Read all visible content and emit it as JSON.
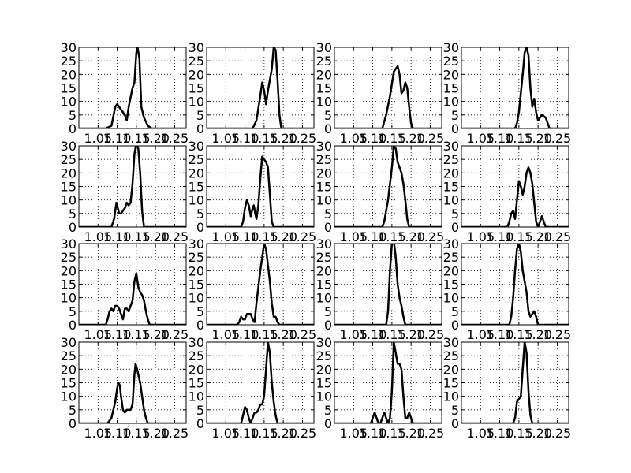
{
  "chart_data": {
    "type": "line",
    "rows": 4,
    "cols": 4,
    "xlim": [
      1.0,
      1.28
    ],
    "ylim": [
      0,
      30
    ],
    "xticks": [
      1.05,
      1.1,
      1.15,
      1.2,
      1.25
    ],
    "xtick_labels": [
      "1.05",
      "1.10",
      "1.15",
      "1.20",
      "1.25"
    ],
    "yticks": [
      0,
      5,
      10,
      15,
      20,
      25,
      30
    ],
    "ytick_labels": [
      "0",
      "5",
      "10",
      "15",
      "20",
      "25",
      "30"
    ],
    "grid": true,
    "panels": [
      {
        "points": [
          [
            1.0,
            0
          ],
          [
            1.07,
            0
          ],
          [
            1.085,
            1
          ],
          [
            1.095,
            8
          ],
          [
            1.1,
            9
          ],
          [
            1.11,
            7
          ],
          [
            1.12,
            5
          ],
          [
            1.125,
            3
          ],
          [
            1.13,
            8
          ],
          [
            1.14,
            15
          ],
          [
            1.145,
            17
          ],
          [
            1.15,
            28
          ],
          [
            1.153,
            30
          ],
          [
            1.158,
            26
          ],
          [
            1.163,
            8
          ],
          [
            1.17,
            4
          ],
          [
            1.18,
            1
          ],
          [
            1.19,
            0
          ],
          [
            1.28,
            0
          ]
        ]
      },
      {
        "points": [
          [
            1.0,
            0
          ],
          [
            1.12,
            0
          ],
          [
            1.13,
            3
          ],
          [
            1.14,
            12
          ],
          [
            1.145,
            17
          ],
          [
            1.15,
            14
          ],
          [
            1.155,
            9
          ],
          [
            1.16,
            14
          ],
          [
            1.17,
            22
          ],
          [
            1.175,
            30
          ],
          [
            1.18,
            29
          ],
          [
            1.185,
            18
          ],
          [
            1.19,
            5
          ],
          [
            1.195,
            0
          ],
          [
            1.28,
            0
          ]
        ]
      },
      {
        "points": [
          [
            1.0,
            0
          ],
          [
            1.125,
            0
          ],
          [
            1.135,
            5
          ],
          [
            1.145,
            12
          ],
          [
            1.155,
            21
          ],
          [
            1.165,
            23
          ],
          [
            1.17,
            20
          ],
          [
            1.175,
            13
          ],
          [
            1.18,
            14
          ],
          [
            1.185,
            17
          ],
          [
            1.19,
            15
          ],
          [
            1.195,
            8
          ],
          [
            1.2,
            2
          ],
          [
            1.205,
            0
          ],
          [
            1.28,
            0
          ]
        ]
      },
      {
        "points": [
          [
            1.0,
            0
          ],
          [
            1.14,
            0
          ],
          [
            1.145,
            2
          ],
          [
            1.15,
            6
          ],
          [
            1.16,
            20
          ],
          [
            1.165,
            28
          ],
          [
            1.17,
            30
          ],
          [
            1.175,
            27
          ],
          [
            1.18,
            15
          ],
          [
            1.185,
            8
          ],
          [
            1.19,
            11
          ],
          [
            1.195,
            6
          ],
          [
            1.2,
            3
          ],
          [
            1.205,
            4
          ],
          [
            1.21,
            5
          ],
          [
            1.22,
            4
          ],
          [
            1.225,
            2
          ],
          [
            1.23,
            0
          ],
          [
            1.28,
            0
          ]
        ]
      },
      {
        "points": [
          [
            1.0,
            0
          ],
          [
            1.085,
            0
          ],
          [
            1.092,
            3
          ],
          [
            1.098,
            9
          ],
          [
            1.1,
            8
          ],
          [
            1.105,
            5
          ],
          [
            1.11,
            5
          ],
          [
            1.12,
            7
          ],
          [
            1.125,
            9
          ],
          [
            1.13,
            8
          ],
          [
            1.135,
            9
          ],
          [
            1.14,
            16
          ],
          [
            1.145,
            27
          ],
          [
            1.15,
            31
          ],
          [
            1.155,
            29
          ],
          [
            1.16,
            20
          ],
          [
            1.165,
            6
          ],
          [
            1.17,
            0
          ],
          [
            1.28,
            0
          ]
        ]
      },
      {
        "points": [
          [
            1.0,
            0
          ],
          [
            1.09,
            0
          ],
          [
            1.095,
            2
          ],
          [
            1.1,
            7
          ],
          [
            1.105,
            10
          ],
          [
            1.11,
            8
          ],
          [
            1.115,
            4
          ],
          [
            1.12,
            7
          ],
          [
            1.123,
            8
          ],
          [
            1.127,
            5
          ],
          [
            1.13,
            3
          ],
          [
            1.135,
            8
          ],
          [
            1.14,
            18
          ],
          [
            1.145,
            26
          ],
          [
            1.15,
            25
          ],
          [
            1.155,
            24
          ],
          [
            1.16,
            22
          ],
          [
            1.165,
            12
          ],
          [
            1.17,
            2
          ],
          [
            1.175,
            0
          ],
          [
            1.28,
            0
          ]
        ]
      },
      {
        "points": [
          [
            1.0,
            0
          ],
          [
            1.125,
            0
          ],
          [
            1.13,
            2
          ],
          [
            1.14,
            10
          ],
          [
            1.15,
            22
          ],
          [
            1.155,
            30
          ],
          [
            1.16,
            29
          ],
          [
            1.165,
            24
          ],
          [
            1.175,
            20
          ],
          [
            1.18,
            16
          ],
          [
            1.185,
            10
          ],
          [
            1.19,
            3
          ],
          [
            1.195,
            0
          ],
          [
            1.28,
            0
          ]
        ]
      },
      {
        "points": [
          [
            1.0,
            0
          ],
          [
            1.12,
            0
          ],
          [
            1.125,
            2
          ],
          [
            1.13,
            5
          ],
          [
            1.135,
            6
          ],
          [
            1.14,
            3
          ],
          [
            1.145,
            10
          ],
          [
            1.15,
            17
          ],
          [
            1.155,
            15
          ],
          [
            1.16,
            12
          ],
          [
            1.165,
            15
          ],
          [
            1.17,
            20
          ],
          [
            1.175,
            22
          ],
          [
            1.18,
            20
          ],
          [
            1.185,
            16
          ],
          [
            1.19,
            9
          ],
          [
            1.195,
            2
          ],
          [
            1.2,
            0
          ],
          [
            1.205,
            2
          ],
          [
            1.21,
            4
          ],
          [
            1.215,
            2
          ],
          [
            1.22,
            0
          ],
          [
            1.28,
            0
          ]
        ]
      },
      {
        "points": [
          [
            1.0,
            0
          ],
          [
            1.07,
            0
          ],
          [
            1.075,
            2
          ],
          [
            1.08,
            5
          ],
          [
            1.085,
            6
          ],
          [
            1.09,
            5
          ],
          [
            1.095,
            7
          ],
          [
            1.1,
            7
          ],
          [
            1.105,
            6
          ],
          [
            1.11,
            4
          ],
          [
            1.115,
            2
          ],
          [
            1.12,
            6
          ],
          [
            1.125,
            6
          ],
          [
            1.13,
            5
          ],
          [
            1.135,
            7
          ],
          [
            1.14,
            9
          ],
          [
            1.145,
            16
          ],
          [
            1.15,
            19
          ],
          [
            1.155,
            14
          ],
          [
            1.16,
            12
          ],
          [
            1.165,
            11
          ],
          [
            1.17,
            9
          ],
          [
            1.175,
            5
          ],
          [
            1.18,
            2
          ],
          [
            1.185,
            0
          ],
          [
            1.28,
            0
          ]
        ]
      },
      {
        "points": [
          [
            1.0,
            0
          ],
          [
            1.08,
            0
          ],
          [
            1.085,
            1
          ],
          [
            1.09,
            3
          ],
          [
            1.095,
            2
          ],
          [
            1.1,
            2
          ],
          [
            1.105,
            4
          ],
          [
            1.11,
            4
          ],
          [
            1.115,
            4
          ],
          [
            1.12,
            2
          ],
          [
            1.125,
            1
          ],
          [
            1.13,
            8
          ],
          [
            1.14,
            20
          ],
          [
            1.145,
            25
          ],
          [
            1.15,
            30
          ],
          [
            1.155,
            28
          ],
          [
            1.16,
            22
          ],
          [
            1.165,
            16
          ],
          [
            1.17,
            8
          ],
          [
            1.175,
            3
          ],
          [
            1.18,
            3
          ],
          [
            1.185,
            1
          ],
          [
            1.19,
            0
          ],
          [
            1.28,
            0
          ]
        ]
      },
      {
        "points": [
          [
            1.0,
            0
          ],
          [
            1.135,
            0
          ],
          [
            1.14,
            5
          ],
          [
            1.145,
            20
          ],
          [
            1.15,
            30
          ],
          [
            1.155,
            31
          ],
          [
            1.16,
            25
          ],
          [
            1.165,
            15
          ],
          [
            1.17,
            10
          ],
          [
            1.175,
            7
          ],
          [
            1.18,
            3
          ],
          [
            1.185,
            0
          ],
          [
            1.28,
            0
          ]
        ]
      },
      {
        "points": [
          [
            1.0,
            0
          ],
          [
            1.125,
            0
          ],
          [
            1.13,
            3
          ],
          [
            1.135,
            10
          ],
          [
            1.14,
            20
          ],
          [
            1.145,
            28
          ],
          [
            1.15,
            30
          ],
          [
            1.155,
            27
          ],
          [
            1.16,
            20
          ],
          [
            1.17,
            12
          ],
          [
            1.175,
            5
          ],
          [
            1.18,
            3
          ],
          [
            1.185,
            4
          ],
          [
            1.19,
            5
          ],
          [
            1.195,
            3
          ],
          [
            1.2,
            0
          ],
          [
            1.28,
            0
          ]
        ]
      },
      {
        "points": [
          [
            1.0,
            0
          ],
          [
            1.075,
            0
          ],
          [
            1.085,
            2
          ],
          [
            1.09,
            5
          ],
          [
            1.095,
            8
          ],
          [
            1.1,
            13
          ],
          [
            1.103,
            15
          ],
          [
            1.107,
            14
          ],
          [
            1.11,
            10
          ],
          [
            1.115,
            5
          ],
          [
            1.12,
            4
          ],
          [
            1.125,
            5
          ],
          [
            1.13,
            5
          ],
          [
            1.135,
            5
          ],
          [
            1.14,
            7
          ],
          [
            1.145,
            18
          ],
          [
            1.148,
            22
          ],
          [
            1.152,
            20
          ],
          [
            1.16,
            15
          ],
          [
            1.165,
            10
          ],
          [
            1.17,
            5
          ],
          [
            1.175,
            2
          ],
          [
            1.18,
            0
          ],
          [
            1.28,
            0
          ]
        ]
      },
      {
        "points": [
          [
            1.0,
            0
          ],
          [
            1.09,
            0
          ],
          [
            1.095,
            3
          ],
          [
            1.1,
            6
          ],
          [
            1.105,
            5
          ],
          [
            1.11,
            2
          ],
          [
            1.115,
            0
          ],
          [
            1.12,
            2
          ],
          [
            1.125,
            4
          ],
          [
            1.13,
            4
          ],
          [
            1.135,
            5
          ],
          [
            1.14,
            7
          ],
          [
            1.145,
            7
          ],
          [
            1.15,
            10
          ],
          [
            1.155,
            20
          ],
          [
            1.16,
            30
          ],
          [
            1.165,
            26
          ],
          [
            1.17,
            15
          ],
          [
            1.175,
            8
          ],
          [
            1.18,
            3
          ],
          [
            1.185,
            0
          ],
          [
            1.28,
            0
          ]
        ]
      },
      {
        "points": [
          [
            1.0,
            0
          ],
          [
            1.095,
            0
          ],
          [
            1.1,
            2
          ],
          [
            1.105,
            4
          ],
          [
            1.11,
            2
          ],
          [
            1.115,
            0
          ],
          [
            1.12,
            0
          ],
          [
            1.125,
            2
          ],
          [
            1.13,
            4
          ],
          [
            1.135,
            2
          ],
          [
            1.14,
            0
          ],
          [
            1.145,
            2
          ],
          [
            1.15,
            12
          ],
          [
            1.155,
            30
          ],
          [
            1.16,
            26
          ],
          [
            1.165,
            22
          ],
          [
            1.17,
            22
          ],
          [
            1.175,
            20
          ],
          [
            1.18,
            10
          ],
          [
            1.185,
            2
          ],
          [
            1.19,
            2
          ],
          [
            1.195,
            4
          ],
          [
            1.2,
            2
          ],
          [
            1.205,
            0
          ],
          [
            1.28,
            0
          ]
        ]
      },
      {
        "points": [
          [
            1.0,
            0
          ],
          [
            1.135,
            0
          ],
          [
            1.14,
            2
          ],
          [
            1.145,
            8
          ],
          [
            1.15,
            9
          ],
          [
            1.155,
            10
          ],
          [
            1.16,
            20
          ],
          [
            1.165,
            30
          ],
          [
            1.17,
            26
          ],
          [
            1.175,
            12
          ],
          [
            1.18,
            3
          ],
          [
            1.185,
            0
          ],
          [
            1.28,
            0
          ]
        ]
      }
    ]
  }
}
